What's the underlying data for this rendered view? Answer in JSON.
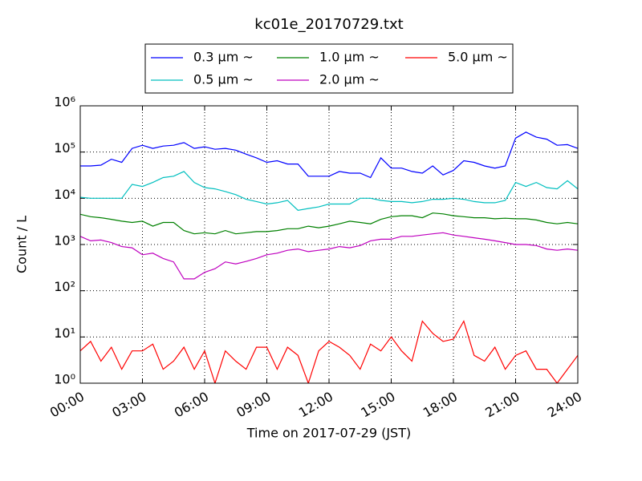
{
  "chart_data": {
    "type": "line",
    "title": "kc01e_20170729.txt",
    "x_label": "Time on 2017-07-29 (JST)",
    "y_label": "Count / L",
    "x": [
      "00:00",
      "00:30",
      "01:00",
      "01:30",
      "02:00",
      "02:30",
      "03:00",
      "03:30",
      "04:00",
      "04:30",
      "05:00",
      "05:30",
      "06:00",
      "06:30",
      "07:00",
      "07:30",
      "08:00",
      "08:30",
      "09:00",
      "09:30",
      "10:00",
      "10:30",
      "11:00",
      "11:30",
      "12:00",
      "12:30",
      "13:00",
      "13:30",
      "14:00",
      "14:30",
      "15:00",
      "15:30",
      "16:00",
      "16:30",
      "17:00",
      "17:30",
      "18:00",
      "18:30",
      "19:00",
      "19:30",
      "20:00",
      "20:30",
      "21:00",
      "21:30",
      "22:00",
      "22:30",
      "23:00",
      "23:30",
      "24:00"
    ],
    "xlim": [
      "00:00",
      "24:00"
    ],
    "xticks": [
      "00:00",
      "03:00",
      "06:00",
      "09:00",
      "12:00",
      "15:00",
      "18:00",
      "21:00",
      "24:00"
    ],
    "yscale": "log",
    "ylim": [
      1,
      1000000
    ],
    "yticks": [
      {
        "value": 1,
        "label": "10⁰"
      },
      {
        "value": 10,
        "label": "10¹"
      },
      {
        "value": 100,
        "label": "10²"
      },
      {
        "value": 1000,
        "label": "10³"
      },
      {
        "value": 10000,
        "label": "10⁴"
      },
      {
        "value": 100000,
        "label": "10⁵"
      },
      {
        "value": 1000000,
        "label": "10⁶"
      }
    ],
    "grid": true,
    "legend": "upper center",
    "series": [
      {
        "name": "0.3 μm ~",
        "color": "#0000ff",
        "values": [
          50000,
          50000,
          52000,
          70000,
          60000,
          120000,
          140000,
          120000,
          135000,
          140000,
          160000,
          120000,
          130000,
          115000,
          120000,
          110000,
          90000,
          75000,
          60000,
          65000,
          55000,
          55000,
          30000,
          30000,
          30000,
          38000,
          35000,
          35000,
          28000,
          75000,
          45000,
          45000,
          38000,
          35000,
          50000,
          32000,
          40000,
          65000,
          60000,
          50000,
          45000,
          50000,
          200000,
          270000,
          210000,
          190000,
          140000,
          145000,
          120000
        ]
      },
      {
        "name": "0.5 μm ~",
        "color": "#00bfbf",
        "values": [
          10500,
          10000,
          10000,
          10000,
          10000,
          20000,
          18000,
          22000,
          28000,
          30000,
          38000,
          22000,
          17000,
          16000,
          14000,
          12000,
          9500,
          8500,
          7500,
          8000,
          9000,
          5500,
          6000,
          6500,
          7500,
          7500,
          7500,
          10000,
          10000,
          9000,
          8500,
          8500,
          8000,
          8500,
          9500,
          9500,
          10000,
          9500,
          8500,
          8000,
          8000,
          9000,
          22000,
          18000,
          22000,
          17000,
          16000,
          24000,
          16000
        ]
      },
      {
        "name": "1.0 μm ~",
        "color": "#008000",
        "values": [
          4500,
          4000,
          3800,
          3500,
          3200,
          3000,
          3200,
          2500,
          3000,
          3000,
          2000,
          1700,
          1800,
          1700,
          2000,
          1700,
          1800,
          1900,
          1900,
          2000,
          2200,
          2200,
          2500,
          2300,
          2500,
          2800,
          3200,
          3000,
          2800,
          3500,
          4000,
          4200,
          4200,
          3800,
          4800,
          4600,
          4200,
          4000,
          3800,
          3800,
          3600,
          3700,
          3600,
          3600,
          3400,
          3000,
          2800,
          3000,
          2800
        ]
      },
      {
        "name": "2.0 μm ~",
        "color": "#bf00bf",
        "values": [
          1500,
          1200,
          1250,
          1100,
          900,
          850,
          600,
          650,
          500,
          420,
          180,
          180,
          250,
          300,
          420,
          380,
          430,
          500,
          600,
          650,
          750,
          800,
          700,
          750,
          800,
          900,
          850,
          950,
          1200,
          1300,
          1300,
          1500,
          1500,
          1600,
          1700,
          1800,
          1600,
          1500,
          1400,
          1300,
          1200,
          1100,
          1000,
          1000,
          950,
          800,
          750,
          800,
          750
        ]
      },
      {
        "name": "5.0 μm ~",
        "color": "#ff0000",
        "values": [
          5,
          8,
          3,
          6,
          2,
          5,
          5,
          7,
          2,
          3,
          6,
          2,
          5,
          1,
          5,
          3,
          2,
          6,
          6,
          2,
          6,
          4,
          1,
          5,
          8,
          6,
          4,
          2,
          7,
          5,
          10,
          5,
          3,
          22,
          12,
          8,
          9,
          22,
          4,
          3,
          6,
          2,
          4,
          5,
          2,
          2,
          1,
          2,
          4
        ]
      }
    ]
  }
}
